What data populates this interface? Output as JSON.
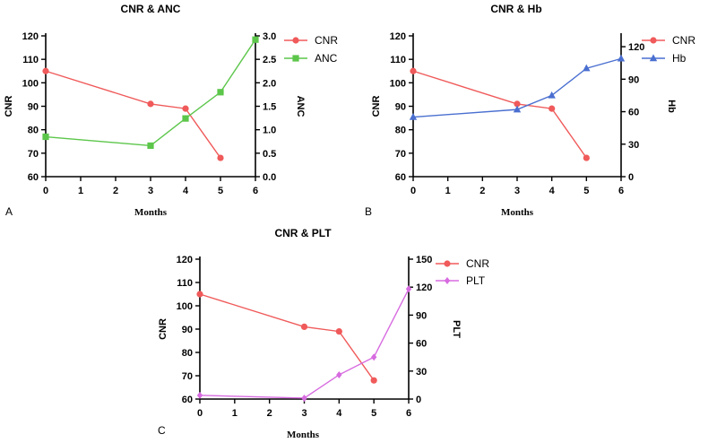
{
  "chart_data": [
    {
      "type": "line",
      "panel": "A",
      "title": "CNR & ANC",
      "xlabel": "Months",
      "ylabel": "CNR",
      "y2label": "ANC",
      "xlim": [
        0,
        6
      ],
      "xticks": [
        0,
        1,
        2,
        3,
        4,
        5,
        6
      ],
      "ylim": [
        60,
        120
      ],
      "yticks": [
        60,
        70,
        80,
        90,
        100,
        110,
        120
      ],
      "y2lim": [
        0,
        3
      ],
      "y2ticks": [
        "0.0",
        "0.5",
        "1.0",
        "1.5",
        "2.0",
        "2.5",
        "3.0"
      ],
      "legend_position": "top-right",
      "series": [
        {
          "name": "CNR",
          "axis": "left",
          "color": "#f05a5a",
          "marker": "circle",
          "x": [
            0,
            3,
            4,
            5
          ],
          "values": [
            105,
            91,
            89,
            68
          ]
        },
        {
          "name": "ANC",
          "axis": "right",
          "color": "#5cc64a",
          "marker": "square",
          "x": [
            0,
            3,
            4,
            5,
            6
          ],
          "values": [
            0.85,
            0.66,
            1.24,
            1.8,
            2.92
          ]
        }
      ]
    },
    {
      "type": "line",
      "panel": "B",
      "title": "CNR & Hb",
      "xlabel": "Months",
      "ylabel": "CNR",
      "y2label": "Hb",
      "xlim": [
        0,
        6
      ],
      "xticks": [
        0,
        1,
        2,
        3,
        4,
        5,
        6
      ],
      "ylim": [
        60,
        120
      ],
      "yticks": [
        60,
        70,
        80,
        90,
        100,
        110,
        120
      ],
      "y2lim": [
        0,
        130
      ],
      "y2ticks": [
        "0",
        "30",
        "60",
        "90",
        "120"
      ],
      "legend_position": "top-right",
      "series": [
        {
          "name": "CNR",
          "axis": "left",
          "color": "#f05a5a",
          "marker": "circle",
          "x": [
            0,
            3,
            4,
            5
          ],
          "values": [
            105,
            91,
            89,
            68
          ]
        },
        {
          "name": "Hb",
          "axis": "right",
          "color": "#4a6fd0",
          "marker": "triangle",
          "x": [
            0,
            3,
            4,
            5,
            6
          ],
          "values": [
            55,
            62,
            75,
            100,
            109
          ]
        }
      ]
    },
    {
      "type": "line",
      "panel": "C",
      "title": "CNR & PLT",
      "xlabel": "Months",
      "ylabel": "CNR",
      "y2label": "PLT",
      "xlim": [
        0,
        6
      ],
      "xticks": [
        0,
        1,
        2,
        3,
        4,
        5,
        6
      ],
      "ylim": [
        60,
        120
      ],
      "yticks": [
        60,
        70,
        80,
        90,
        100,
        110,
        120
      ],
      "y2lim": [
        0,
        150
      ],
      "y2ticks": [
        "0",
        "30",
        "60",
        "90",
        "120",
        "150"
      ],
      "legend_position": "top-right",
      "series": [
        {
          "name": "CNR",
          "axis": "left",
          "color": "#f05a5a",
          "marker": "circle",
          "x": [
            0,
            3,
            4,
            5
          ],
          "values": [
            105,
            91,
            89,
            68
          ]
        },
        {
          "name": "PLT",
          "axis": "right",
          "color": "#d76be0",
          "marker": "diamond",
          "x": [
            0,
            3,
            4,
            5,
            6
          ],
          "values": [
            4,
            1,
            26,
            45,
            118
          ]
        }
      ]
    }
  ]
}
